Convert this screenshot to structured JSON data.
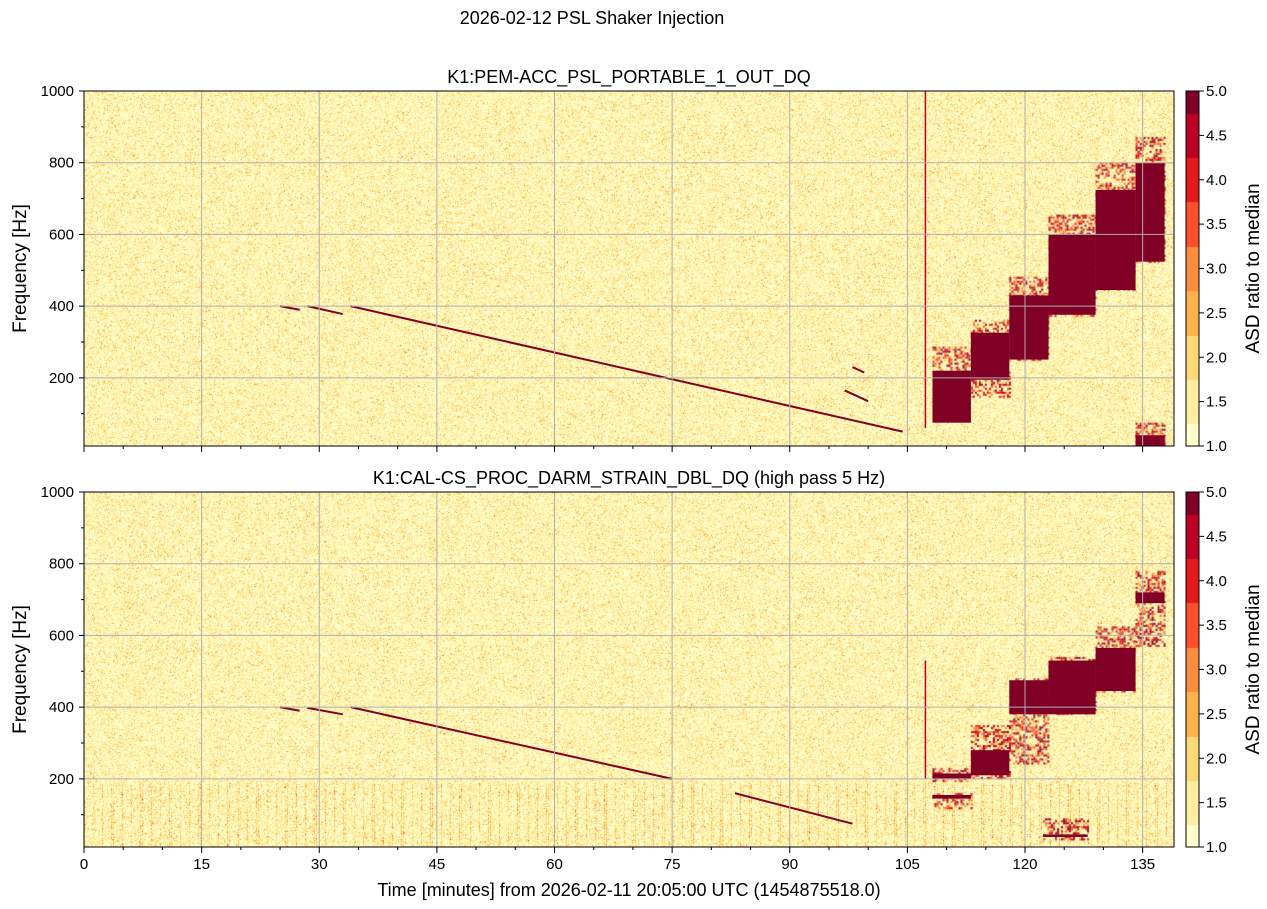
{
  "chart_data": {
    "type": "heatmap",
    "title": "2026-02-12 PSL Shaker Injection",
    "xlabel": "Time [minutes] from 2026-02-11 20:05:00 UTC (1454875518.0)",
    "xlim": [
      0,
      139
    ],
    "xticks": [
      0,
      15,
      30,
      45,
      60,
      75,
      90,
      105,
      120,
      135
    ],
    "grid": true,
    "colormap": [
      "#ffffcc",
      "#ffeda0",
      "#fed976",
      "#feb24c",
      "#fd8d3c",
      "#fc4e2a",
      "#e31a1c",
      "#bd0026",
      "#800026"
    ],
    "panels": [
      {
        "title": "K1:PEM-ACC_PSL_PORTABLE_1_OUT_DQ",
        "ylabel": "Frequency [Hz]",
        "ylim": [
          10,
          1000
        ],
        "yticks": [
          200,
          400,
          600,
          800,
          1000
        ],
        "colorbar": {
          "label": "ASD ratio to median",
          "range": [
            1.0,
            5.0
          ],
          "ticks": [
            "1.0",
            "1.5",
            "2.0",
            "2.5",
            "3.0",
            "3.5",
            "4.0",
            "4.5",
            "5.0"
          ]
        },
        "chirps": [
          {
            "t": [
              25,
              27.5
            ],
            "f": [
              400,
              390
            ]
          },
          {
            "t": [
              28.5,
              33
            ],
            "f": [
              400,
              378
            ]
          },
          {
            "t": [
              34,
              104.4
            ],
            "f": [
              400,
              50
            ]
          },
          {
            "t": [
              98,
              99.5
            ],
            "f": [
              230,
              215
            ]
          },
          {
            "t": [
              97,
              100
            ],
            "f": [
              165,
              135
            ]
          }
        ],
        "vlines": [
          {
            "t": 107.3,
            "f": [
              60,
              1000
            ]
          }
        ],
        "blocks": [
          {
            "t": [
              108.2,
              113.1
            ],
            "f": [
              75,
              220
            ],
            "halo": [
              220,
              287
            ]
          },
          {
            "t": [
              113.1,
              118.0
            ],
            "f": [
              195,
              326
            ],
            "halo": [
              148,
              362
            ]
          },
          {
            "t": [
              118.0,
              123.0
            ],
            "f": [
              251,
              430
            ],
            "halo": [
              251,
              482
            ]
          },
          {
            "t": [
              123.0,
              129.0
            ],
            "f": [
              376,
              600
            ],
            "halo": [
              376,
              655
            ]
          },
          {
            "t": [
              129.0,
              134.1
            ],
            "f": [
              445,
              724
            ],
            "halo": [
              445,
              800
            ]
          },
          {
            "t": [
              134.1,
              137.8
            ],
            "f": [
              524,
              800
            ],
            "halo": [
              524,
              872
            ]
          },
          {
            "t": [
              134.1,
              137.8
            ],
            "f": [
              10,
              40
            ],
            "halo": [
              10,
              75
            ]
          }
        ]
      },
      {
        "title": "K1:CAL-CS_PROC_DARM_STRAIN_DBL_DQ (high pass 5 Hz)",
        "ylabel": "Frequency [Hz]",
        "ylim": [
          10,
          1000
        ],
        "yticks": [
          200,
          400,
          600,
          800,
          1000
        ],
        "colorbar": {
          "label": "ASD ratio to median",
          "range": [
            1.0,
            5.0
          ],
          "ticks": [
            "1.0",
            "1.5",
            "2.0",
            "2.5",
            "3.0",
            "3.5",
            "4.0",
            "4.5",
            "5.0"
          ]
        },
        "chirps": [
          {
            "t": [
              25,
              27.5
            ],
            "f": [
              400,
              390
            ]
          },
          {
            "t": [
              28.5,
              33
            ],
            "f": [
              398,
              380
            ]
          },
          {
            "t": [
              34,
              75
            ],
            "f": [
              400,
              200
            ]
          },
          {
            "t": [
              83,
              98
            ],
            "f": [
              160,
              75
            ]
          }
        ],
        "vlines": [
          {
            "t": 107.3,
            "f": [
              200,
              530
            ]
          }
        ],
        "blocks": [
          {
            "t": [
              108.2,
              113.1
            ],
            "f": [
              200,
              215
            ],
            "halo": [
              195,
              230
            ]
          },
          {
            "t": [
              108.2,
              113.1
            ],
            "f": [
              145,
              155
            ],
            "halo": [
              120,
              160
            ]
          },
          {
            "t": [
              113.1,
              118.0
            ],
            "f": [
              210,
              280
            ],
            "halo": [
              200,
              350
            ]
          },
          {
            "t": [
              118.0,
              123.0
            ],
            "f": [
              380,
              475
            ],
            "halo": [
              245,
              480
            ]
          },
          {
            "t": [
              123.0,
              129.0
            ],
            "f": [
              380,
              530
            ],
            "halo": [
              380,
              540
            ]
          },
          {
            "t": [
              129.0,
              134.1
            ],
            "f": [
              445,
              565
            ],
            "halo": [
              445,
              625
            ]
          },
          {
            "t": [
              134.1,
              137.8
            ],
            "f": [
              690,
              720
            ],
            "halo": [
              570,
              780
            ]
          },
          {
            "t": [
              122.3,
              128.0
            ],
            "f": [
              38,
              45
            ],
            "halo": [
              30,
              90
            ]
          }
        ]
      }
    ]
  }
}
